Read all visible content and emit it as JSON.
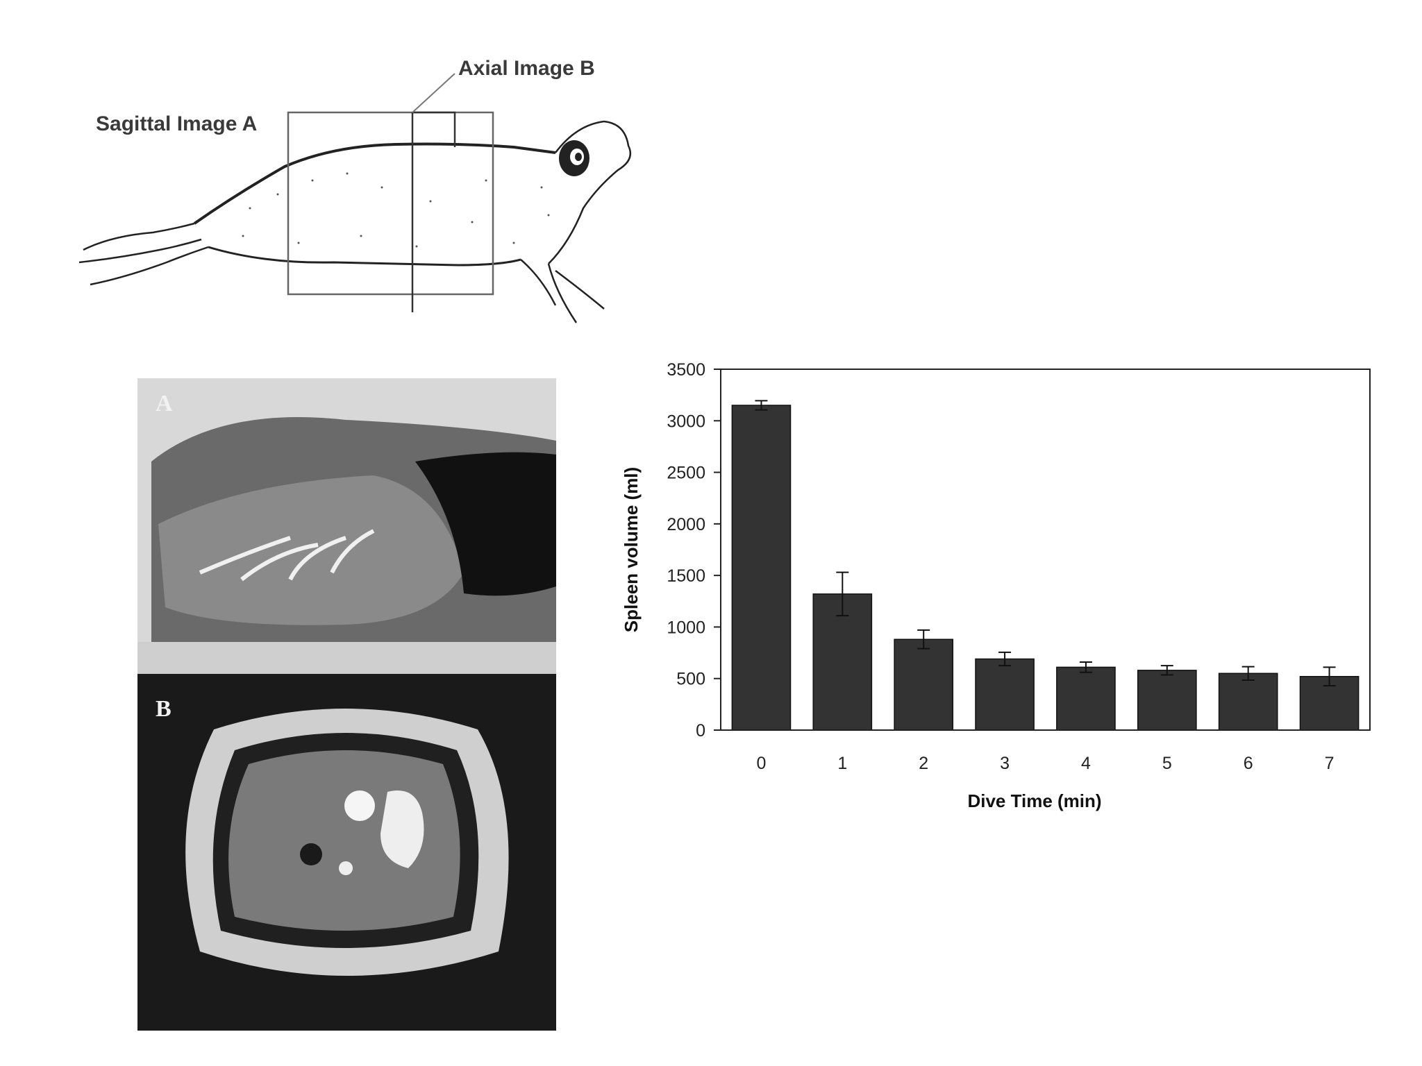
{
  "diagram": {
    "label_sagittal": "Sagittal Image A",
    "label_axial": "Axial Image B"
  },
  "mri": {
    "panel_a_letter": "A",
    "panel_b_letter": "B"
  },
  "chart_data": {
    "type": "bar",
    "categories": [
      "0",
      "1",
      "2",
      "3",
      "4",
      "5",
      "6",
      "7"
    ],
    "values": [
      3150,
      1320,
      880,
      690,
      610,
      580,
      550,
      520
    ],
    "errors": [
      45,
      210,
      90,
      65,
      50,
      45,
      65,
      90
    ],
    "title": "",
    "xlabel": "Dive Time (min)",
    "ylabel": "Spleen volume (ml)",
    "ylim": [
      0,
      3500
    ],
    "yticks": [
      0,
      500,
      1000,
      1500,
      2000,
      2500,
      3000,
      3500
    ],
    "bar_color": "#333333",
    "grid": false,
    "legend": "none"
  }
}
